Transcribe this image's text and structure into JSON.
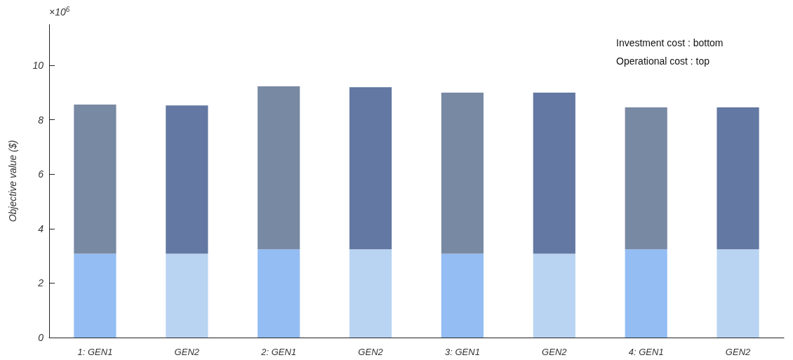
{
  "chart_data": {
    "type": "bar",
    "ylabel": "Objective value ($)",
    "stacked": true,
    "categories": [
      "1: GEN1",
      "GEN2",
      "2: GEN1",
      "GEN2",
      "3: GEN1",
      "GEN2",
      "4: GEN1",
      "GEN2"
    ],
    "series": [
      {
        "colors": [
          "#93bdf3",
          "#b9d4f2",
          "#93bdf3",
          "#b9d4f2",
          "#93bdf3",
          "#b9d4f2",
          "#93bdf3",
          "#b9d4f2"
        ],
        "values": [
          3.08,
          3.08,
          3.24,
          3.24,
          3.08,
          3.08,
          3.24,
          3.24
        ]
      },
      {
        "colors": [
          "#7889a3",
          "#6378a2",
          "#7889a3",
          "#6378a2",
          "#7889a3",
          "#6378a2",
          "#7889a3",
          "#6378a2"
        ],
        "values": [
          5.48,
          5.45,
          5.99,
          5.96,
          5.92,
          5.92,
          5.22,
          5.22
        ]
      }
    ],
    "ylim": [
      0,
      11.5
    ],
    "yticks": [
      0,
      2,
      4,
      6,
      8,
      10
    ],
    "grid": false,
    "annotations": [
      "×10$^{6}$",
      "Investment cost : bottom",
      "Operational cost : top"
    ]
  }
}
